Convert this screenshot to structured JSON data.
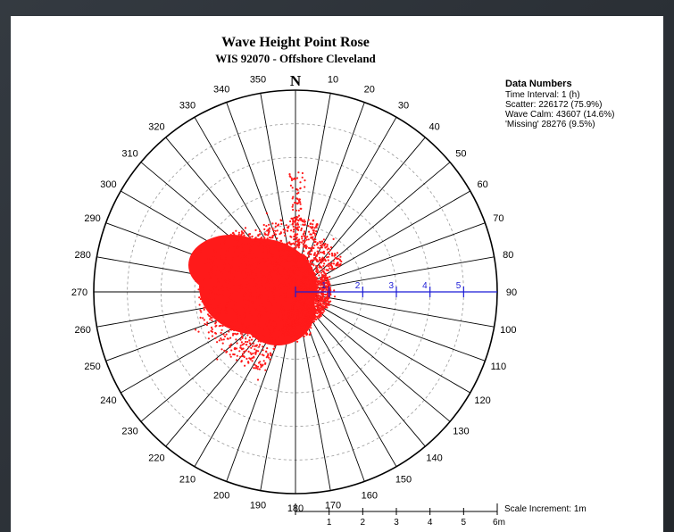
{
  "chart_data": {
    "type": "scatter",
    "subtype": "polar point rose",
    "title": "Wave Height Point Rose",
    "subtitle": "WIS 92070 - Offshore Cleveland",
    "north_label": "N",
    "direction_labels": [
      "10",
      "20",
      "30",
      "40",
      "50",
      "60",
      "70",
      "80",
      "90",
      "100",
      "110",
      "120",
      "130",
      "140",
      "150",
      "160",
      "170",
      "180",
      "190",
      "200",
      "210",
      "220",
      "230",
      "240",
      "250",
      "260",
      "270",
      "280",
      "290",
      "300",
      "310",
      "320",
      "330",
      "340",
      "350"
    ],
    "direction_step_deg": 10,
    "radial_ticks": [
      "1",
      "2",
      "3",
      "4",
      "5"
    ],
    "rmax": 6,
    "scale_ticks": [
      "1",
      "2",
      "3",
      "4",
      "5",
      "6m"
    ],
    "scale_label": "Scale Increment: 1m",
    "info": {
      "heading": "Data Numbers",
      "lines": [
        "Time Interval: 1 (h)",
        "Scatter: 226172 (75.9%)",
        "Wave Calm: 43607 (14.6%)",
        "'Missing' 28276 (9.5%)"
      ]
    },
    "point_color": "#ff1a1a",
    "axis_color": "#1b1bd6",
    "grid": true
  }
}
